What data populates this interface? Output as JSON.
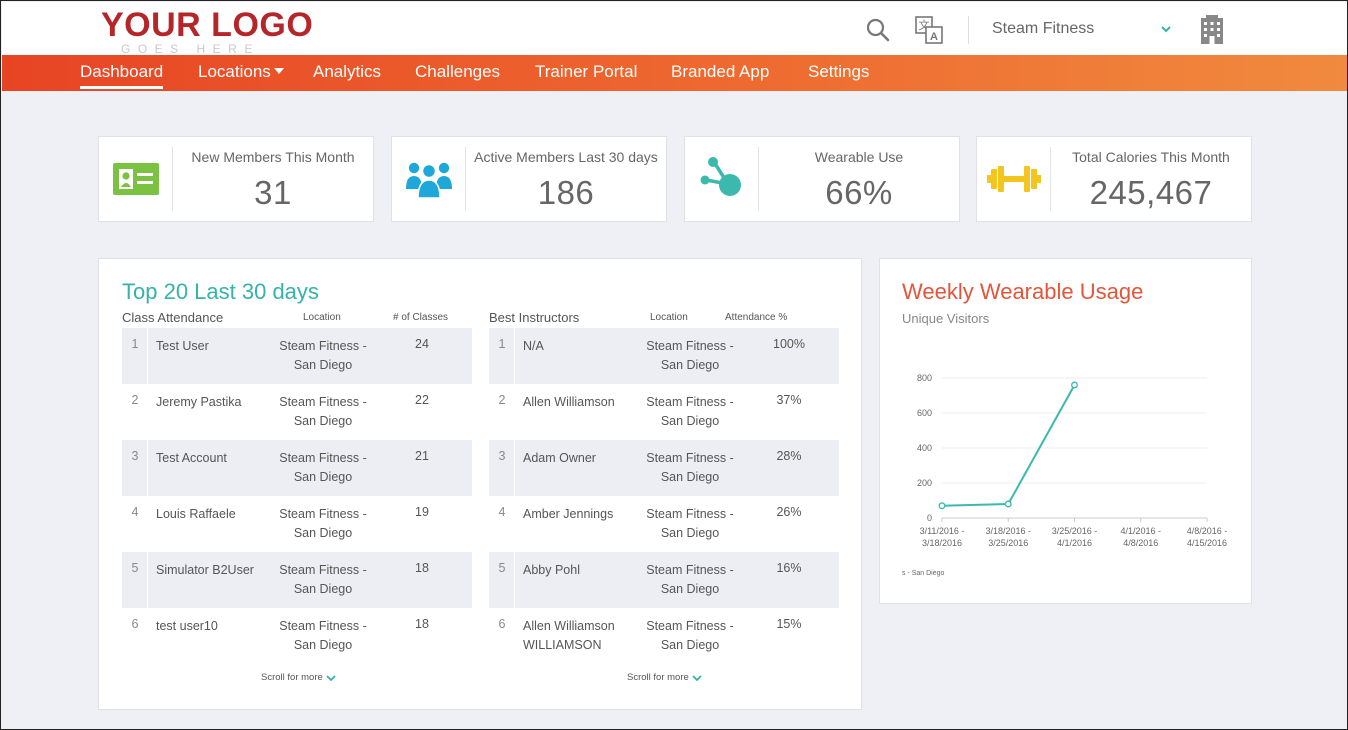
{
  "header": {
    "logo_main": "YOUR LOGO",
    "logo_sub": "GOES HERE",
    "selected_gym": "Steam Fitness",
    "icons": [
      "search-icon",
      "translate-icon",
      "chevron-down-icon",
      "building-icon"
    ]
  },
  "nav": {
    "items": [
      {
        "label": "Dashboard",
        "active": true
      },
      {
        "label": "Locations",
        "has_dropdown": true
      },
      {
        "label": "Analytics"
      },
      {
        "label": "Challenges"
      },
      {
        "label": "Trainer Portal"
      },
      {
        "label": "Branded App"
      },
      {
        "label": "Settings"
      }
    ]
  },
  "stats": [
    {
      "label": "New Members This Month",
      "value": "31",
      "icon": "id-card-icon",
      "color": "#7cc242"
    },
    {
      "label": "Active Members Last 30 days",
      "value": "186",
      "icon": "users-icon",
      "color": "#1ea8d9"
    },
    {
      "label": "Wearable Use",
      "value": "66%",
      "icon": "share-nodes-icon",
      "color": "#3bb9ad"
    },
    {
      "label": "Total Calories This Month",
      "value": "245,467",
      "icon": "dumbbell-icon",
      "color": "#f5c51f"
    }
  ],
  "top20": {
    "title": "Top 20 Last 30 days",
    "scroll_label": "Scroll for more",
    "class_attendance": {
      "title": "Class Attendance",
      "col_location": "Location",
      "col_value": "# of Classes",
      "rows": [
        {
          "rank": "1",
          "name": "Test User",
          "loc1": "Steam Fitness -",
          "loc2": "San Diego",
          "value": "24"
        },
        {
          "rank": "2",
          "name": "Jeremy Pastika",
          "loc1": "Steam Fitness -",
          "loc2": "San Diego",
          "value": "22"
        },
        {
          "rank": "3",
          "name": "Test Account",
          "loc1": "Steam Fitness -",
          "loc2": "San Diego",
          "value": "21"
        },
        {
          "rank": "4",
          "name": "Louis Raffaele",
          "loc1": "Steam Fitness -",
          "loc2": "San Diego",
          "value": "19"
        },
        {
          "rank": "5",
          "name": "Simulator B2User",
          "loc1": "Steam Fitness -",
          "loc2": "San Diego",
          "value": "18"
        },
        {
          "rank": "6",
          "name": "test user10",
          "loc1": "Steam Fitness -",
          "loc2": "San Diego",
          "value": "18"
        }
      ]
    },
    "best_instructors": {
      "title": "Best Instructors",
      "col_location": "Location",
      "col_value": "Attendance %",
      "rows": [
        {
          "rank": "1",
          "name": "N/A",
          "loc1": "Steam Fitness -",
          "loc2": "San Diego",
          "value": "100%"
        },
        {
          "rank": "2",
          "name": "Allen Williamson",
          "loc1": "Steam Fitness -",
          "loc2": "San Diego",
          "value": "37%"
        },
        {
          "rank": "3",
          "name": "Adam Owner",
          "loc1": "Steam Fitness -",
          "loc2": "San Diego",
          "value": "28%"
        },
        {
          "rank": "4",
          "name": "Amber Jennings",
          "loc1": "Steam Fitness -",
          "loc2": "San Diego",
          "value": "26%"
        },
        {
          "rank": "5",
          "name": "Abby Pohl",
          "loc1": "Steam Fitness -",
          "loc2": "San Diego",
          "value": "16%"
        },
        {
          "rank": "6",
          "name": "Allen Williamson WILLIAMSON",
          "loc1": "Steam Fitness -",
          "loc2": "San Diego",
          "value": "15%"
        }
      ]
    }
  },
  "weekly": {
    "title": "Weekly Wearable Usage",
    "subtitle": "Unique Visitors"
  },
  "chart_data": {
    "type": "line",
    "title": "Weekly Wearable Usage",
    "subtitle": "Unique Visitors",
    "categories": [
      [
        "3/11/2016 -",
        "3/18/2016"
      ],
      [
        "3/18/2016 -",
        "3/25/2016"
      ],
      [
        "3/25/2016 -",
        "4/1/2016"
      ],
      [
        "4/1/2016 -",
        "4/8/2016"
      ],
      [
        "4/8/2016 -",
        "4/15/2016"
      ]
    ],
    "series": [
      {
        "name": "s - San Diego",
        "values": [
          70,
          80,
          760,
          null,
          null
        ],
        "color": "#3bb9ad"
      }
    ],
    "ylim": [
      0,
      800
    ],
    "yticks": [
      0,
      200,
      400,
      600,
      800
    ],
    "grid": true,
    "legend": "bottom-left"
  }
}
